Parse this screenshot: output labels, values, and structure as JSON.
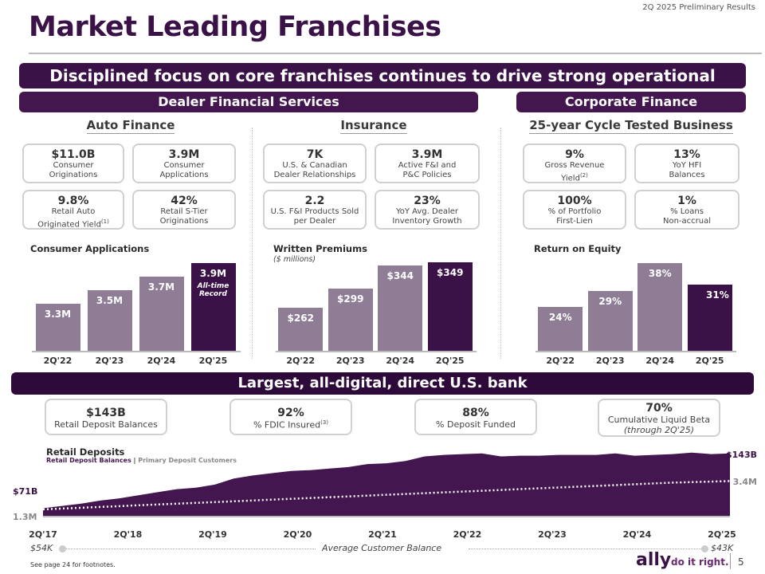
{
  "header": {
    "subtitle": "2Q 2025 Preliminary Results",
    "title": "Market Leading Franchises",
    "banner_main": "Disciplined focus on core franchises continues to drive strong operational results",
    "banner_dealer": "Dealer Financial Services",
    "banner_corporate": "Corporate Finance"
  },
  "sections": {
    "auto": "Auto Finance",
    "insurance": "Insurance",
    "corporate": "25-year Cycle Tested Business"
  },
  "auto_cards": [
    {
      "value": "$11.0B",
      "label1": "Consumer",
      "label2": "Originations"
    },
    {
      "value": "3.9M",
      "label1": "Consumer",
      "label2": "Applications"
    },
    {
      "value": "9.8%",
      "label1": "Retail Auto",
      "label2": "Originated Yield",
      "sup": "(1)"
    },
    {
      "value": "42%",
      "label1": "Retail S-Tier",
      "label2": "Originations"
    }
  ],
  "insurance_cards": [
    {
      "value": "7K",
      "label1": "U.S. & Canadian",
      "label2": "Dealer Relationships"
    },
    {
      "value": "3.9M",
      "label1": "Active F&I and",
      "label2": "P&C Policies"
    },
    {
      "value": "2.2",
      "label1": "U.S. F&I Products Sold",
      "label2": "per Dealer"
    },
    {
      "value": "23%",
      "label1": "YoY Avg. Dealer",
      "label2": "Inventory Growth"
    }
  ],
  "corporate_cards": [
    {
      "value": "9%",
      "label1": "Gross Revenue",
      "label2": "Yield",
      "sup": "(2)"
    },
    {
      "value": "13%",
      "label1": "YoY HFI",
      "label2": "Balances"
    },
    {
      "value": "100%",
      "label1": "% of Portfolio",
      "label2": "First-Lien"
    },
    {
      "value": "1%",
      "label1": "% Loans",
      "label2": "Non-accrual"
    }
  ],
  "chart_data": [
    {
      "type": "bar",
      "title": "Consumer Applications",
      "categories": [
        "2Q'22",
        "2Q'23",
        "2Q'24",
        "2Q'25"
      ],
      "values": [
        3.3,
        3.5,
        3.7,
        3.9
      ],
      "labels": [
        "3.3M",
        "3.5M",
        "3.7M",
        "3.9M"
      ],
      "annotation": "All-time Record",
      "ylim": [
        2.6,
        4.0
      ]
    },
    {
      "type": "bar",
      "title": "Written Premiums",
      "subtitle": "($ millions)",
      "categories": [
        "2Q'22",
        "2Q'23",
        "2Q'24",
        "2Q'25"
      ],
      "values": [
        262,
        299,
        344,
        349
      ],
      "labels": [
        "$262",
        "$299",
        "$344",
        "$349"
      ],
      "ylim": [
        180,
        360
      ]
    },
    {
      "type": "bar",
      "title": "Return on Equity",
      "categories": [
        "2Q'22",
        "2Q'23",
        "2Q'24",
        "2Q'25"
      ],
      "values": [
        24,
        29,
        38,
        31
      ],
      "labels": [
        "24%",
        "29%",
        "38%",
        "31%"
      ],
      "ylim": [
        10,
        40
      ]
    },
    {
      "type": "area",
      "title": "Retail Deposits",
      "legend": [
        "Retail Deposit Balances",
        "Primary Deposit Customers"
      ],
      "x": [
        "2Q'17",
        "2Q'18",
        "2Q'19",
        "2Q'20",
        "2Q'21",
        "2Q'22",
        "2Q'23",
        "2Q'24",
        "2Q'25"
      ],
      "deposits_start": "$71B",
      "deposits_end": "$143B",
      "customers_start": "1.3M",
      "customers_end": "3.4M",
      "deposits": [
        71,
        74,
        77,
        81,
        84,
        88,
        92,
        96,
        98,
        102,
        110,
        114,
        117,
        120,
        121,
        123,
        125,
        129,
        130,
        133,
        139,
        141,
        142,
        143,
        139,
        140,
        140,
        141,
        141,
        141,
        143,
        140,
        141,
        142,
        144,
        142,
        143
      ],
      "customers": [
        1.3,
        1.36,
        1.42,
        1.48,
        1.54,
        1.6,
        1.66,
        1.72,
        1.78,
        1.84,
        1.9,
        1.96,
        2.02,
        2.08,
        2.14,
        2.2,
        2.26,
        2.32,
        2.38,
        2.44,
        2.5,
        2.56,
        2.62,
        2.68,
        2.74,
        2.8,
        2.86,
        2.92,
        2.98,
        3.04,
        3.1,
        3.16,
        3.22,
        3.28,
        3.32,
        3.36,
        3.4
      ],
      "ylim": [
        60,
        150
      ]
    }
  ],
  "deposit_cards": [
    {
      "value": "$143B",
      "label": "Retail Deposit Balances"
    },
    {
      "value": "92%",
      "label": "% FDIC Insured",
      "sup": "(3)"
    },
    {
      "value": "88%",
      "label": "% Deposit Funded"
    },
    {
      "value": "70%",
      "label": "Cumulative Liquid Beta",
      "note": "(through 2Q'25)"
    }
  ],
  "bank_banner": "Largest, all-digital, direct U.S. bank",
  "avg_balance": {
    "label": "Average Customer Balance",
    "start": "$54K",
    "end": "$43K"
  },
  "footer": {
    "footnote": "See page 24 for footnotes.",
    "brand": "ally",
    "tagline": "do it right.",
    "page": "5"
  },
  "colors": {
    "brand": "#3b1248",
    "bar": "#8e7d95",
    "area": "#44164f"
  }
}
